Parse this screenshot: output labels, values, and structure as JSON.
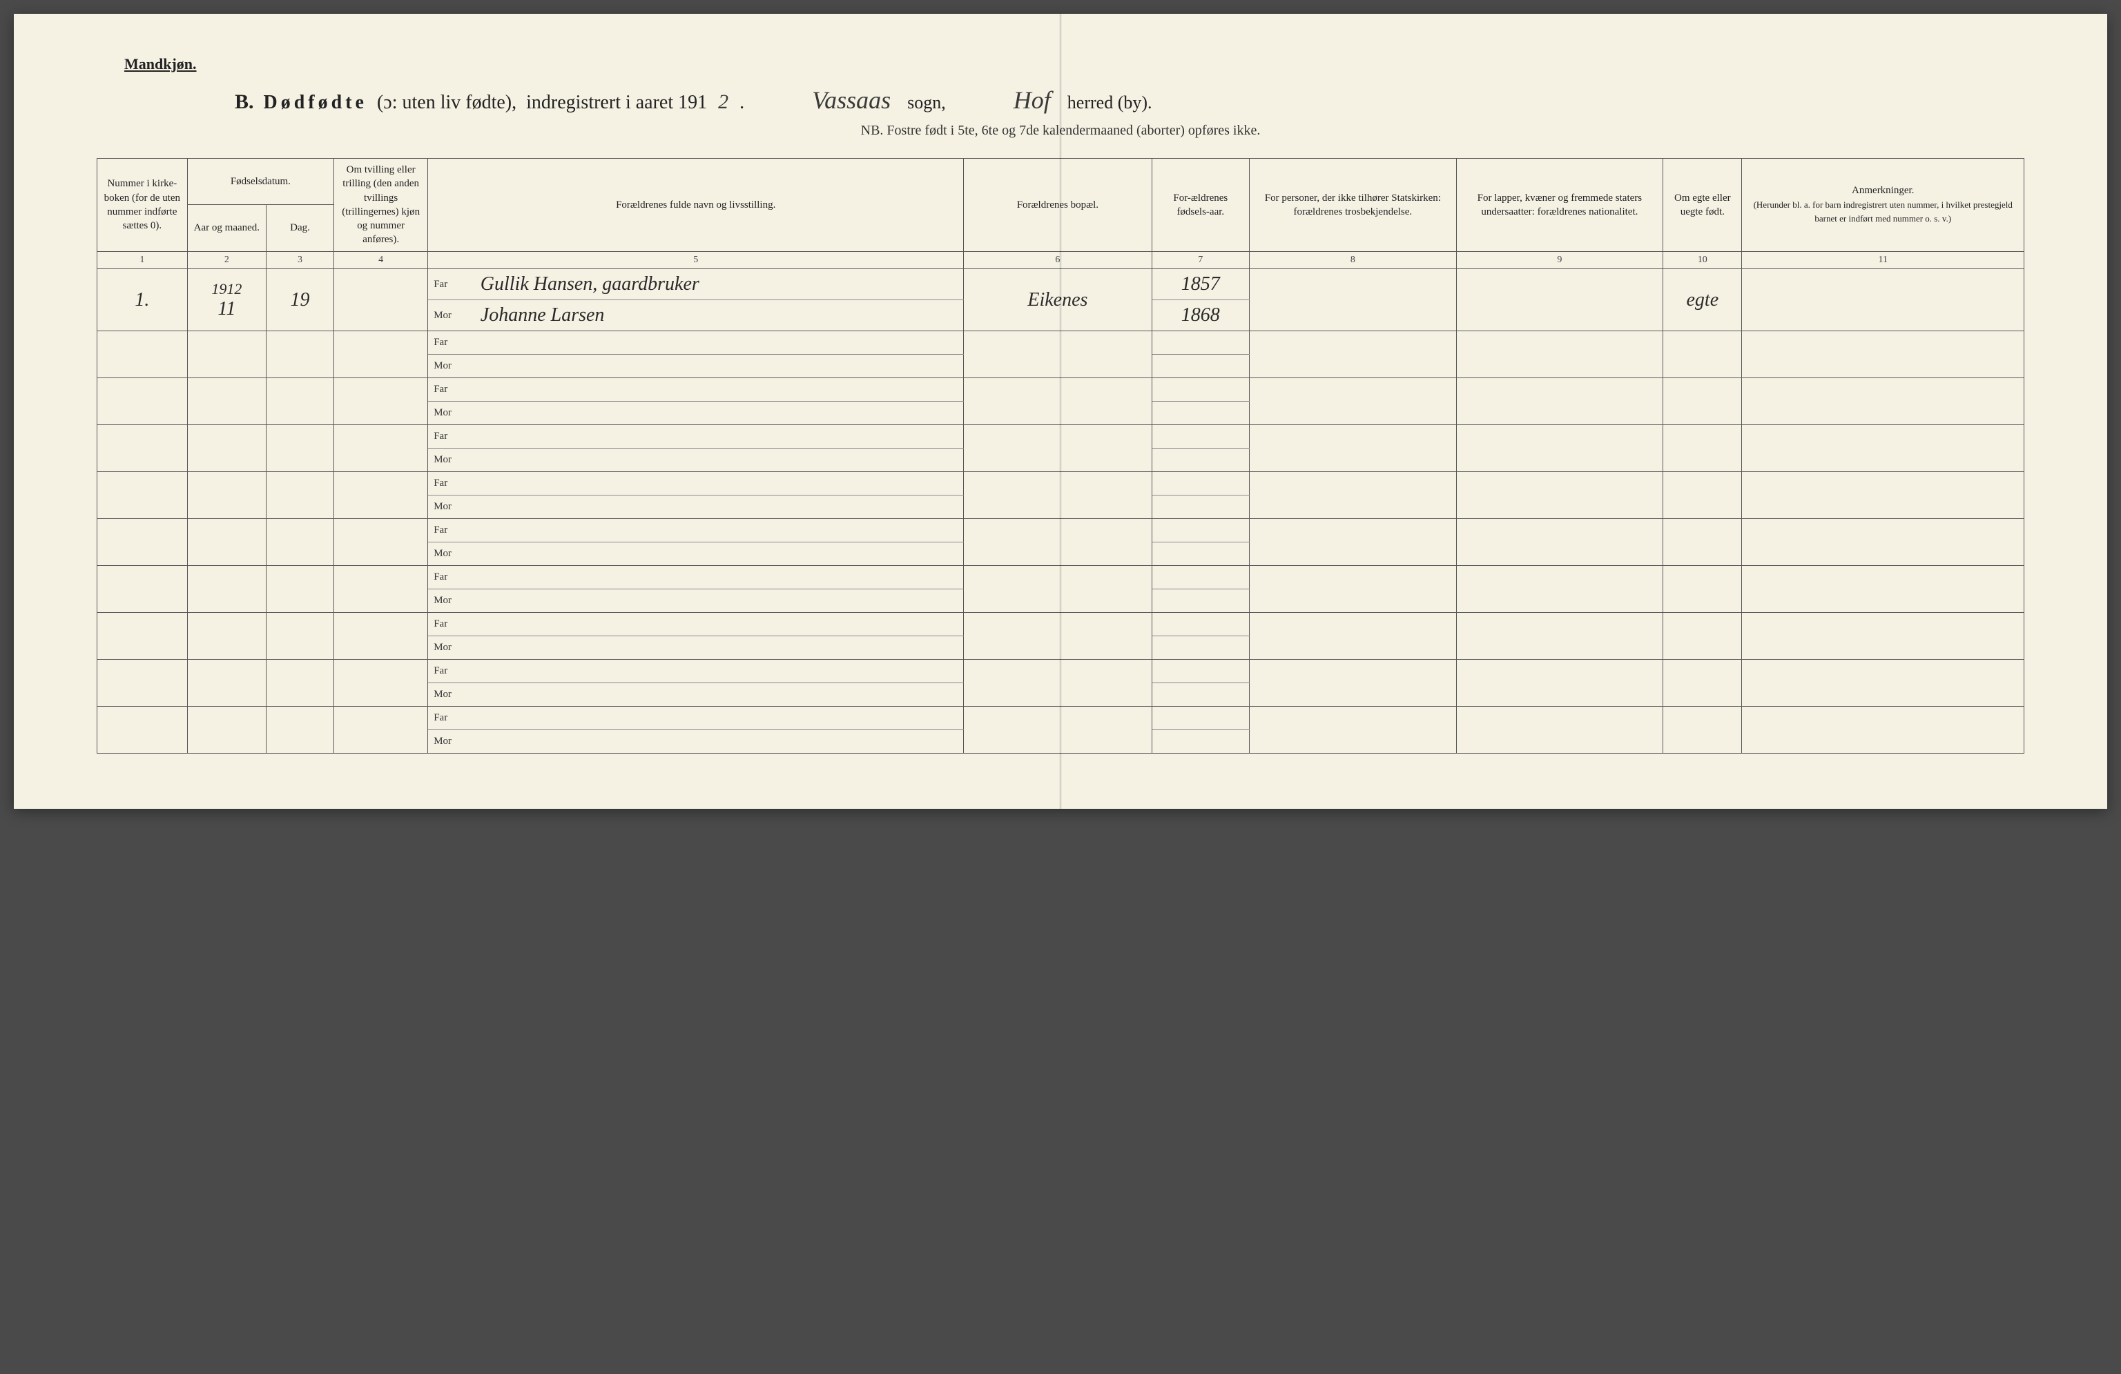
{
  "header_small": "Mandkjøn.",
  "title": {
    "prefix": "B.",
    "main_spaced": "Dødfødte",
    "paren": "(ɔ: uten liv fødte),",
    "indreg": "indregistrert i aaret 191",
    "year_suffix": "2",
    "sogn_hand": "Vassaas",
    "sogn_label": "sogn,",
    "herred_hand": "Hof",
    "herred_label": "herred (by)."
  },
  "subtitle": "NB.  Fostre født i 5te, 6te og 7de kalendermaaned (aborter) opføres ikke.",
  "columns": {
    "c1": "Nummer i kirke-boken (for de uten nummer indførte sættes 0).",
    "c2_group": "Fødselsdatum.",
    "c2a": "Aar og maaned.",
    "c2b": "Dag.",
    "c4": "Om tvilling eller trilling (den anden tvillings (trillingernes) kjøn og nummer anføres).",
    "c5": "Forældrenes fulde navn og livsstilling.",
    "c6": "Forældrenes bopæl.",
    "c7": "For-ældrenes fødsels-aar.",
    "c8": "For personer, der ikke tilhører Statskirken: forældrenes trosbekjendelse.",
    "c9": "For lapper, kvæner og fremmede staters undersaatter: forældrenes nationalitet.",
    "c10": "Om egte eller uegte født.",
    "c11": "Anmerkninger.",
    "c11_sub": "(Herunder bl. a. for barn indregistrert uten nummer, i hvilket prestegjeld barnet er indført med nummer o. s. v.)"
  },
  "colnums": [
    "1",
    "2",
    "3",
    "4",
    "5",
    "6",
    "7",
    "8",
    "9",
    "10",
    "11"
  ],
  "farmor": {
    "far": "Far",
    "mor": "Mor"
  },
  "rows": [
    {
      "num": "1.",
      "year": "1912",
      "aar_maaned": "11",
      "dag": "19",
      "tvilling": "",
      "far": "Gullik Hansen, gaardbruker",
      "mor": "Johanne Larsen",
      "bopael": "Eikenes",
      "far_aar": "1857",
      "mor_aar": "1868",
      "tros": "",
      "nat": "",
      "egte": "egte",
      "anm": ""
    },
    {},
    {},
    {},
    {},
    {},
    {},
    {},
    {},
    {}
  ],
  "style": {
    "page_bg": "#f5f2e4",
    "outer_bg": "#4a4a4a",
    "border_color": "#555",
    "thick_border": "#333",
    "text_color": "#222",
    "hand_color": "#2a2a2a",
    "header_fontsize": 22,
    "title_fontsize": 28,
    "hand_fontsize": 36,
    "subtitle_fontsize": 20,
    "th_fontsize": 15,
    "td_fontsize": 17
  }
}
